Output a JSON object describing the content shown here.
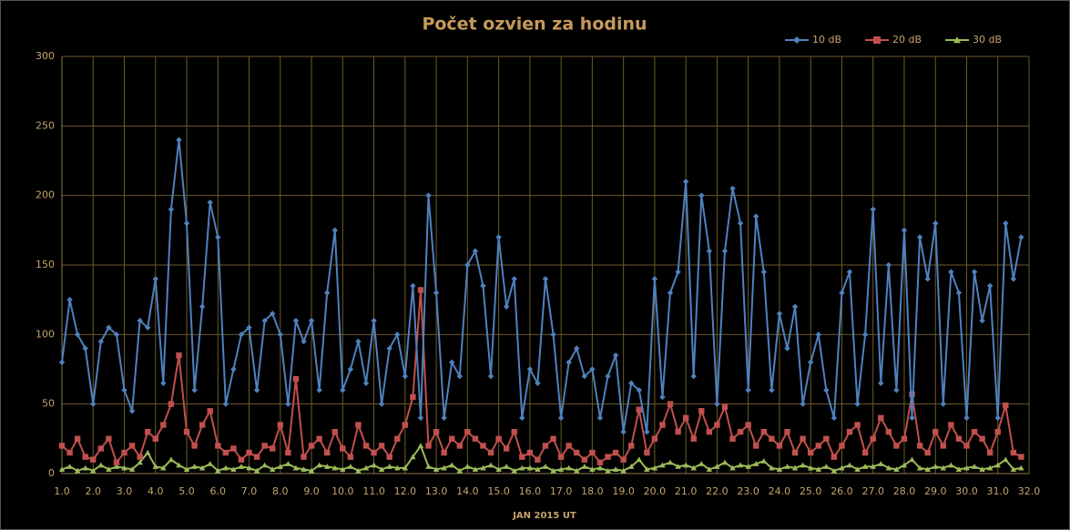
{
  "chart_data": {
    "type": "line",
    "title": "Počet ozvien za hodinu",
    "x_label": "JAN 2015 UT",
    "x": [
      1,
      1.25,
      1.5,
      1.75,
      2,
      2.25,
      2.5,
      2.75,
      3,
      3.25,
      3.5,
      3.75,
      4,
      4.25,
      4.5,
      4.75,
      5,
      5.25,
      5.5,
      5.75,
      6,
      6.25,
      6.5,
      6.75,
      7,
      7.25,
      7.5,
      7.75,
      8,
      8.25,
      8.5,
      8.75,
      9,
      9.25,
      9.5,
      9.75,
      10,
      10.25,
      10.5,
      10.75,
      11,
      11.25,
      11.5,
      11.75,
      12,
      12.25,
      12.5,
      12.75,
      13,
      13.25,
      13.5,
      13.75,
      14,
      14.25,
      14.5,
      14.75,
      15,
      15.25,
      15.5,
      15.75,
      16,
      16.25,
      16.5,
      16.75,
      17,
      17.25,
      17.5,
      17.75,
      18,
      18.25,
      18.5,
      18.75,
      19,
      19.25,
      19.5,
      19.75,
      20,
      20.25,
      20.5,
      20.75,
      21,
      21.25,
      21.5,
      21.75,
      22,
      22.25,
      22.5,
      22.75,
      23,
      23.25,
      23.5,
      23.75,
      24,
      24.25,
      24.5,
      24.75,
      25,
      25.25,
      25.5,
      25.75,
      26,
      26.25,
      26.5,
      26.75,
      27,
      27.25,
      27.5,
      27.75,
      28,
      28.25,
      28.5,
      28.75,
      29,
      29.25,
      29.5,
      29.75,
      30,
      30.25,
      30.5,
      30.75,
      31,
      31.25,
      31.5,
      31.75
    ],
    "series": [
      {
        "name": "10 dB",
        "color": "#4f81bd",
        "marker": "diamond",
        "values": [
          80,
          125,
          100,
          90,
          50,
          95,
          105,
          100,
          60,
          45,
          110,
          105,
          140,
          65,
          190,
          240,
          180,
          60,
          120,
          195,
          170,
          50,
          75,
          100,
          105,
          60,
          110,
          115,
          100,
          50,
          110,
          95,
          110,
          60,
          130,
          175,
          60,
          75,
          95,
          65,
          110,
          50,
          90,
          100,
          70,
          135,
          40,
          200,
          130,
          40,
          80,
          70,
          150,
          160,
          135,
          70,
          170,
          120,
          140,
          40,
          75,
          65,
          140,
          100,
          40,
          80,
          90,
          70,
          75,
          40,
          70,
          85,
          30,
          65,
          60,
          30,
          140,
          55,
          130,
          145,
          210,
          70,
          200,
          160,
          50,
          160,
          205,
          180,
          60,
          185,
          145,
          60,
          115,
          90,
          120,
          50,
          80,
          100,
          60,
          40,
          130,
          145,
          50,
          100,
          190,
          65,
          150,
          60,
          175,
          40,
          170,
          140,
          180,
          50,
          145,
          130,
          40,
          145,
          110,
          135,
          40,
          180,
          140,
          170
        ]
      },
      {
        "name": "20 dB",
        "color": "#c0504d",
        "marker": "square",
        "values": [
          20,
          15,
          25,
          12,
          10,
          18,
          25,
          8,
          15,
          20,
          12,
          30,
          25,
          35,
          50,
          85,
          30,
          20,
          35,
          45,
          20,
          15,
          18,
          10,
          15,
          12,
          20,
          18,
          35,
          15,
          68,
          12,
          20,
          25,
          15,
          30,
          18,
          12,
          35,
          20,
          15,
          20,
          12,
          25,
          35,
          55,
          132,
          20,
          30,
          15,
          25,
          20,
          30,
          25,
          20,
          15,
          25,
          18,
          30,
          12,
          15,
          10,
          20,
          25,
          12,
          20,
          15,
          10,
          15,
          8,
          12,
          15,
          10,
          20,
          46,
          15,
          25,
          35,
          50,
          30,
          40,
          25,
          45,
          30,
          35,
          48,
          25,
          30,
          35,
          20,
          30,
          25,
          20,
          30,
          15,
          25,
          15,
          20,
          25,
          12,
          20,
          30,
          35,
          15,
          25,
          40,
          30,
          20,
          25,
          57,
          20,
          15,
          30,
          20,
          35,
          25,
          20,
          30,
          25,
          15,
          30,
          49,
          15,
          12
        ]
      },
      {
        "name": "30 dB",
        "color": "#9bbb59",
        "marker": "triangle",
        "values": [
          3,
          5,
          2,
          4,
          2,
          6,
          3,
          5,
          4,
          3,
          8,
          15,
          5,
          4,
          10,
          6,
          3,
          5,
          4,
          7,
          2,
          4,
          3,
          5,
          4,
          2,
          6,
          3,
          5,
          7,
          4,
          3,
          2,
          6,
          5,
          4,
          3,
          5,
          2,
          4,
          6,
          3,
          5,
          4,
          4,
          12,
          20,
          5,
          3,
          4,
          6,
          2,
          5,
          3,
          4,
          6,
          3,
          5,
          2,
          4,
          4,
          3,
          5,
          2,
          3,
          4,
          2,
          5,
          3,
          4,
          2,
          3,
          2,
          5,
          10,
          3,
          4,
          6,
          8,
          5,
          6,
          4,
          7,
          3,
          5,
          8,
          4,
          6,
          5,
          7,
          9,
          4,
          3,
          5,
          4,
          6,
          4,
          3,
          5,
          2,
          4,
          6,
          3,
          5,
          5,
          7,
          4,
          3,
          6,
          10,
          4,
          3,
          5,
          4,
          6,
          3,
          4,
          5,
          3,
          4,
          6,
          10,
          3,
          4
        ]
      }
    ],
    "xlim": [
      1,
      32
    ],
    "xticks": [
      {
        "value": 1,
        "label": "1.0"
      },
      {
        "value": 2,
        "label": "2.0"
      },
      {
        "value": 3,
        "label": "3.0"
      },
      {
        "value": 4,
        "label": "4.0"
      },
      {
        "value": 5,
        "label": "5.0"
      },
      {
        "value": 6,
        "label": "6.0"
      },
      {
        "value": 7,
        "label": "7.0"
      },
      {
        "value": 8,
        "label": "8.0"
      },
      {
        "value": 9,
        "label": "9.0"
      },
      {
        "value": 10,
        "label": "10.0"
      },
      {
        "value": 11,
        "label": "11.0"
      },
      {
        "value": 12,
        "label": "12.0"
      },
      {
        "value": 13,
        "label": "13.0"
      },
      {
        "value": 14,
        "label": "14.0"
      },
      {
        "value": 15,
        "label": "15.0"
      },
      {
        "value": 16,
        "label": "16.0"
      },
      {
        "value": 17,
        "label": "17.0"
      },
      {
        "value": 18,
        "label": "18.0"
      },
      {
        "value": 19,
        "label": "19.0"
      },
      {
        "value": 20,
        "label": "20.0"
      },
      {
        "value": 21,
        "label": "21.0"
      },
      {
        "value": 22,
        "label": "22.0"
      },
      {
        "value": 23,
        "label": "23.0"
      },
      {
        "value": 24,
        "label": "24.0"
      },
      {
        "value": 25,
        "label": "25.0"
      },
      {
        "value": 26,
        "label": "26.0"
      },
      {
        "value": 27,
        "label": "27.0"
      },
      {
        "value": 28,
        "label": "28.0"
      },
      {
        "value": 29,
        "label": "29.0"
      },
      {
        "value": 30,
        "label": "30.0"
      },
      {
        "value": 31,
        "label": "31.0"
      },
      {
        "value": 32,
        "label": "32.0"
      }
    ],
    "ylim": [
      0,
      300
    ],
    "yticks": [
      0,
      50,
      100,
      150,
      200,
      250,
      300
    ],
    "grid": true,
    "legend": "top-right"
  }
}
